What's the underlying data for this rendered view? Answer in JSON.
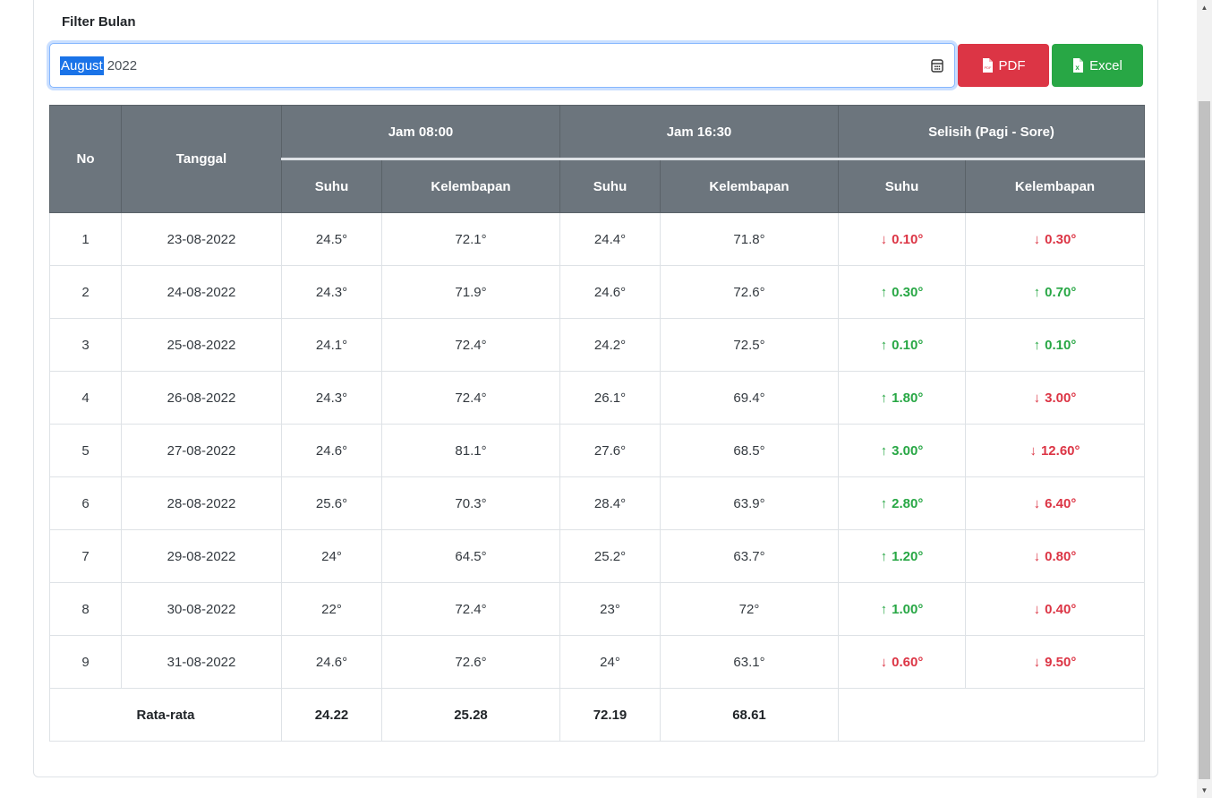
{
  "filter": {
    "label": "Filter Bulan",
    "month_selected": "August",
    "year": "2022"
  },
  "buttons": {
    "pdf": "PDF",
    "excel": "Excel"
  },
  "table": {
    "headers": {
      "no": "No",
      "tanggal": "Tanggal",
      "jam_pagi": "Jam 08:00",
      "jam_sore": "Jam 16:30",
      "selisih": "Selisih (Pagi - Sore)",
      "suhu": "Suhu",
      "kelembapan": "Kelembapan"
    },
    "rows": [
      {
        "no": "1",
        "tanggal": "23-08-2022",
        "suhu_pagi": "24.5°",
        "lembap_pagi": "72.1°",
        "suhu_sore": "24.4°",
        "lembap_sore": "71.8°",
        "d_suhu": "0.10°",
        "d_suhu_dir": "down",
        "d_lembap": "0.30°",
        "d_lembap_dir": "down"
      },
      {
        "no": "2",
        "tanggal": "24-08-2022",
        "suhu_pagi": "24.3°",
        "lembap_pagi": "71.9°",
        "suhu_sore": "24.6°",
        "lembap_sore": "72.6°",
        "d_suhu": "0.30°",
        "d_suhu_dir": "up",
        "d_lembap": "0.70°",
        "d_lembap_dir": "up"
      },
      {
        "no": "3",
        "tanggal": "25-08-2022",
        "suhu_pagi": "24.1°",
        "lembap_pagi": "72.4°",
        "suhu_sore": "24.2°",
        "lembap_sore": "72.5°",
        "d_suhu": "0.10°",
        "d_suhu_dir": "up",
        "d_lembap": "0.10°",
        "d_lembap_dir": "up"
      },
      {
        "no": "4",
        "tanggal": "26-08-2022",
        "suhu_pagi": "24.3°",
        "lembap_pagi": "72.4°",
        "suhu_sore": "26.1°",
        "lembap_sore": "69.4°",
        "d_suhu": "1.80°",
        "d_suhu_dir": "up",
        "d_lembap": "3.00°",
        "d_lembap_dir": "down"
      },
      {
        "no": "5",
        "tanggal": "27-08-2022",
        "suhu_pagi": "24.6°",
        "lembap_pagi": "81.1°",
        "suhu_sore": "27.6°",
        "lembap_sore": "68.5°",
        "d_suhu": "3.00°",
        "d_suhu_dir": "up",
        "d_lembap": "12.60°",
        "d_lembap_dir": "down"
      },
      {
        "no": "6",
        "tanggal": "28-08-2022",
        "suhu_pagi": "25.6°",
        "lembap_pagi": "70.3°",
        "suhu_sore": "28.4°",
        "lembap_sore": "63.9°",
        "d_suhu": "2.80°",
        "d_suhu_dir": "up",
        "d_lembap": "6.40°",
        "d_lembap_dir": "down"
      },
      {
        "no": "7",
        "tanggal": "29-08-2022",
        "suhu_pagi": "24°",
        "lembap_pagi": "64.5°",
        "suhu_sore": "25.2°",
        "lembap_sore": "63.7°",
        "d_suhu": "1.20°",
        "d_suhu_dir": "up",
        "d_lembap": "0.80°",
        "d_lembap_dir": "down"
      },
      {
        "no": "8",
        "tanggal": "30-08-2022",
        "suhu_pagi": "22°",
        "lembap_pagi": "72.4°",
        "suhu_sore": "23°",
        "lembap_sore": "72°",
        "d_suhu": "1.00°",
        "d_suhu_dir": "up",
        "d_lembap": "0.40°",
        "d_lembap_dir": "down"
      },
      {
        "no": "9",
        "tanggal": "31-08-2022",
        "suhu_pagi": "24.6°",
        "lembap_pagi": "72.6°",
        "suhu_sore": "24°",
        "lembap_sore": "63.1°",
        "d_suhu": "0.60°",
        "d_suhu_dir": "down",
        "d_lembap": "9.50°",
        "d_lembap_dir": "down"
      }
    ],
    "average": {
      "label": "Rata-rata",
      "values": [
        "24.22",
        "25.28",
        "72.19",
        "68.61"
      ]
    }
  },
  "icons": {
    "pdf": "pdf-file-icon",
    "excel": "excel-file-icon",
    "calendar": "calendar-icon",
    "up": "arrow-up-icon",
    "down": "arrow-down-icon"
  },
  "colors": {
    "header_bg": "#6c757d",
    "pdf": "#dc3545",
    "excel": "#28a745",
    "up": "#28a745",
    "down": "#dc3545",
    "selection": "#1a73e8"
  }
}
